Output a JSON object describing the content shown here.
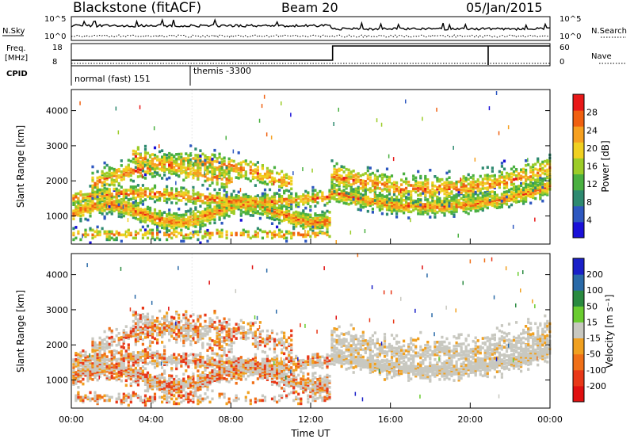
{
  "header": {
    "site": "Blackstone (fitACF)",
    "beam": "Beam 20",
    "date": "05/Jan/2015"
  },
  "params": {
    "nsky_label": "N.Sky",
    "nsearch_label": "N.Search",
    "freq_label_1": "Freq.",
    "freq_label_2": "[MHz]",
    "nave_label": "Nave",
    "cpid_label": "CPID",
    "count_ticks": [
      "10^5",
      "10^0"
    ],
    "freq_ticks": [
      "18",
      "8"
    ],
    "nave_ticks": [
      "60",
      "0"
    ],
    "cpid_segments": [
      {
        "label": "normal (fast) 151",
        "start_hour": 0,
        "end_hour": 6
      },
      {
        "label": "themis -3300",
        "start_hour": 6,
        "end_hour": 24
      }
    ]
  },
  "chart_data": [
    {
      "type": "heatmap",
      "name": "power",
      "ylabel": "Slant Range [km]",
      "xlabel": "",
      "xlim": [
        0,
        24
      ],
      "ylim": [
        200,
        4600
      ],
      "yticks": [
        "1000",
        "2000",
        "3000",
        "4000"
      ],
      "colorbar_label": "Power [dB]",
      "colorbar_ticks": [
        "28",
        "24",
        "20",
        "16",
        "12",
        "8",
        "4"
      ],
      "colors": [
        "#1a10d8",
        "#2e58c0",
        "#2e8a70",
        "#4ab040",
        "#9ccc28",
        "#f0d020",
        "#f6a020",
        "#f06010",
        "#e81818"
      ]
    },
    {
      "type": "heatmap",
      "name": "velocity",
      "ylabel": "Slant Range [km]",
      "xlabel": "Time UT",
      "xlim": [
        0,
        24
      ],
      "ylim": [
        200,
        4600
      ],
      "yticks": [
        "1000",
        "2000",
        "3000",
        "4000"
      ],
      "xticks": [
        "00:00",
        "04:00",
        "08:00",
        "12:00",
        "16:00",
        "20:00",
        "00:00"
      ],
      "colorbar_label": "Velocity [m s⁻¹]",
      "colorbar_ticks": [
        "200",
        "100",
        "50",
        "15",
        "-15",
        "-50",
        "-100",
        "-200"
      ],
      "colors": [
        "#1a20c8",
        "#2a6aa8",
        "#2a8a40",
        "#6acc30",
        "#c8c8c0",
        "#f0a020",
        "#f07018",
        "#e83818",
        "#e01010"
      ]
    }
  ]
}
